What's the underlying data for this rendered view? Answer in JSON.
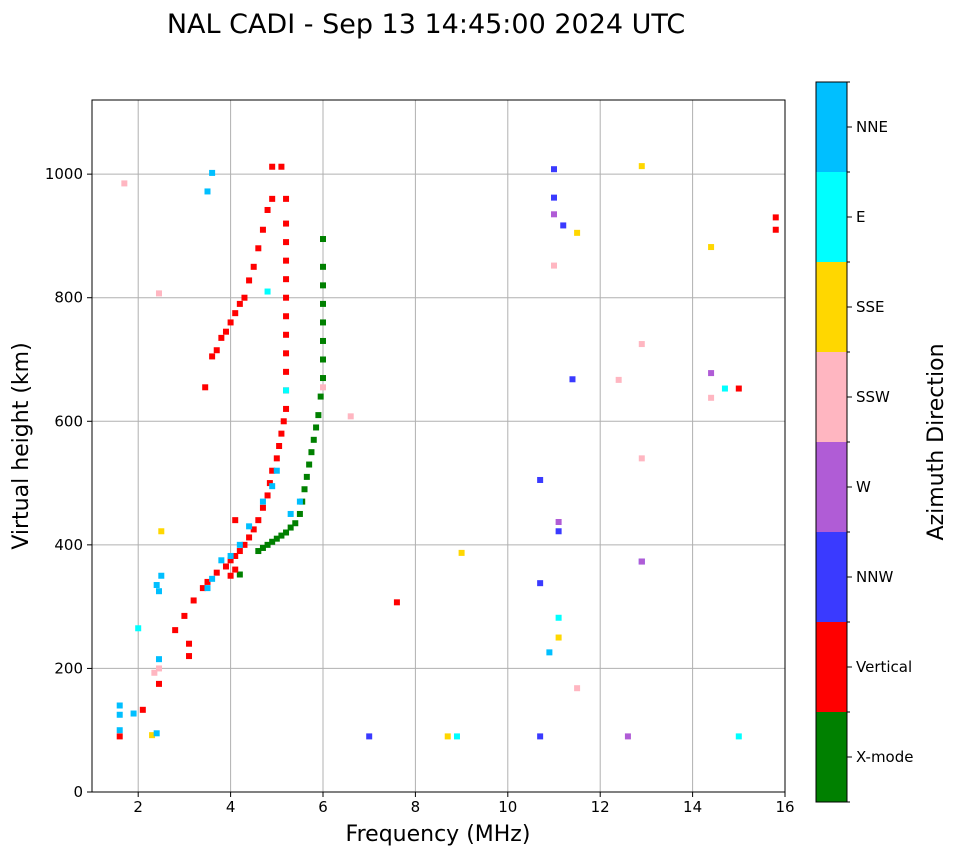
{
  "chart_data": {
    "type": "scatter",
    "title": "NAL CADI - Sep 13 14:45:00 2024 UTC",
    "xlabel": "Frequency (MHz)",
    "ylabel": "Virtual height (km)",
    "xlim": [
      1,
      16
    ],
    "ylim": [
      0,
      1120
    ],
    "xticks": [
      2,
      4,
      6,
      8,
      10,
      12,
      14,
      16
    ],
    "yticks": [
      0,
      200,
      400,
      600,
      800,
      1000
    ],
    "grid": true,
    "colorbar": {
      "label": "Azimuth Direction",
      "categories": [
        {
          "name": "X-mode",
          "color": "#008000"
        },
        {
          "name": "Vertical",
          "color": "#ff0000"
        },
        {
          "name": "NNW",
          "color": "#3a3aff"
        },
        {
          "name": "W",
          "color": "#b05cd6"
        },
        {
          "name": "SSW",
          "color": "#ffb6c1"
        },
        {
          "name": "SSE",
          "color": "#ffd700"
        },
        {
          "name": "E",
          "color": "#00ffff"
        },
        {
          "name": "NNE",
          "color": "#00bfff"
        }
      ]
    },
    "series": [
      {
        "name": "X-mode",
        "points": [
          [
            4.6,
            390
          ],
          [
            4.7,
            395
          ],
          [
            4.8,
            400
          ],
          [
            4.9,
            405
          ],
          [
            5.0,
            410
          ],
          [
            5.1,
            415
          ],
          [
            5.2,
            420
          ],
          [
            5.3,
            428
          ],
          [
            5.4,
            435
          ],
          [
            5.5,
            450
          ],
          [
            5.55,
            470
          ],
          [
            5.6,
            490
          ],
          [
            5.65,
            510
          ],
          [
            5.7,
            530
          ],
          [
            5.75,
            550
          ],
          [
            5.8,
            570
          ],
          [
            5.85,
            590
          ],
          [
            5.9,
            610
          ],
          [
            5.95,
            640
          ],
          [
            6.0,
            670
          ],
          [
            6.0,
            700
          ],
          [
            6.0,
            730
          ],
          [
            6.0,
            760
          ],
          [
            6.0,
            790
          ],
          [
            6.0,
            820
          ],
          [
            6.0,
            850
          ],
          [
            6.0,
            895
          ],
          [
            4.2,
            352
          ]
        ]
      },
      {
        "name": "Vertical",
        "points": [
          [
            2.8,
            262
          ],
          [
            3.0,
            285
          ],
          [
            3.2,
            310
          ],
          [
            3.4,
            330
          ],
          [
            3.5,
            340
          ],
          [
            3.7,
            355
          ],
          [
            3.9,
            365
          ],
          [
            4.0,
            375
          ],
          [
            4.1,
            382
          ],
          [
            4.2,
            390
          ],
          [
            4.3,
            400
          ],
          [
            4.4,
            412
          ],
          [
            4.5,
            425
          ],
          [
            4.6,
            440
          ],
          [
            4.7,
            460
          ],
          [
            4.8,
            480
          ],
          [
            4.85,
            500
          ],
          [
            4.9,
            520
          ],
          [
            5.0,
            540
          ],
          [
            5.05,
            560
          ],
          [
            5.1,
            580
          ],
          [
            5.15,
            600
          ],
          [
            5.2,
            620
          ],
          [
            5.2,
            650
          ],
          [
            5.2,
            680
          ],
          [
            5.2,
            710
          ],
          [
            5.2,
            740
          ],
          [
            5.2,
            770
          ],
          [
            5.2,
            800
          ],
          [
            5.2,
            830
          ],
          [
            5.2,
            860
          ],
          [
            5.2,
            890
          ],
          [
            5.2,
            920
          ],
          [
            5.2,
            960
          ],
          [
            5.1,
            1012
          ],
          [
            4.9,
            1012
          ],
          [
            4.0,
            350
          ],
          [
            4.1,
            360
          ],
          [
            4.1,
            440
          ],
          [
            3.45,
            655
          ],
          [
            3.8,
            735
          ],
          [
            3.9,
            745
          ],
          [
            4.0,
            760
          ],
          [
            4.1,
            775
          ],
          [
            4.2,
            790
          ],
          [
            4.3,
            800
          ],
          [
            4.4,
            828
          ],
          [
            4.5,
            850
          ],
          [
            4.6,
            880
          ],
          [
            4.7,
            910
          ],
          [
            4.8,
            942
          ],
          [
            4.9,
            960
          ],
          [
            3.6,
            705
          ],
          [
            3.7,
            715
          ],
          [
            2.45,
            175
          ],
          [
            2.1,
            133
          ],
          [
            3.1,
            220
          ],
          [
            3.1,
            240
          ],
          [
            15.0,
            653
          ],
          [
            15.8,
            930
          ],
          [
            15.8,
            910
          ],
          [
            7.6,
            307
          ],
          [
            1.6,
            90
          ]
        ]
      },
      {
        "name": "NNW",
        "points": [
          [
            10.7,
            90
          ],
          [
            10.7,
            338
          ],
          [
            10.7,
            505
          ],
          [
            11.0,
            962
          ],
          [
            11.0,
            1008
          ],
          [
            11.2,
            917
          ],
          [
            11.4,
            668
          ],
          [
            7.0,
            90
          ],
          [
            11.1,
            422
          ],
          [
            12.9,
            373
          ]
        ]
      },
      {
        "name": "W",
        "points": [
          [
            12.6,
            90
          ],
          [
            12.9,
            373
          ],
          [
            14.4,
            678
          ],
          [
            11.1,
            437
          ],
          [
            11.0,
            935
          ]
        ]
      },
      {
        "name": "SSW",
        "points": [
          [
            11.5,
            168
          ],
          [
            12.4,
            667
          ],
          [
            12.9,
            540
          ],
          [
            12.9,
            725
          ],
          [
            14.4,
            638
          ],
          [
            6.6,
            608
          ],
          [
            2.45,
            200
          ],
          [
            2.35,
            193
          ],
          [
            1.7,
            985
          ],
          [
            2.45,
            807
          ],
          [
            6.0,
            655
          ],
          [
            11.0,
            852
          ]
        ]
      },
      {
        "name": "SSE",
        "points": [
          [
            8.7,
            90
          ],
          [
            9.0,
            387
          ],
          [
            11.5,
            905
          ],
          [
            12.9,
            1013
          ],
          [
            14.4,
            882
          ],
          [
            2.5,
            422
          ],
          [
            11.1,
            250
          ],
          [
            2.3,
            92
          ]
        ]
      },
      {
        "name": "E",
        "points": [
          [
            8.9,
            90
          ],
          [
            11.1,
            282
          ],
          [
            14.7,
            653
          ],
          [
            15.0,
            90
          ],
          [
            2.0,
            265
          ],
          [
            4.8,
            810
          ],
          [
            5.2,
            650
          ]
        ]
      },
      {
        "name": "NNE",
        "points": [
          [
            1.6,
            125
          ],
          [
            1.6,
            100
          ],
          [
            1.6,
            140
          ],
          [
            10.9,
            226
          ],
          [
            3.5,
            972
          ],
          [
            3.6,
            1002
          ],
          [
            2.45,
            215
          ],
          [
            2.4,
            335
          ],
          [
            2.45,
            325
          ],
          [
            2.5,
            350
          ],
          [
            3.5,
            330
          ],
          [
            3.6,
            345
          ],
          [
            3.8,
            375
          ],
          [
            4.0,
            382
          ],
          [
            4.2,
            400
          ],
          [
            4.4,
            430
          ],
          [
            4.7,
            470
          ],
          [
            4.9,
            495
          ],
          [
            5.0,
            520
          ],
          [
            5.3,
            450
          ],
          [
            5.5,
            470
          ],
          [
            1.9,
            127
          ],
          [
            2.4,
            95
          ]
        ]
      }
    ]
  }
}
